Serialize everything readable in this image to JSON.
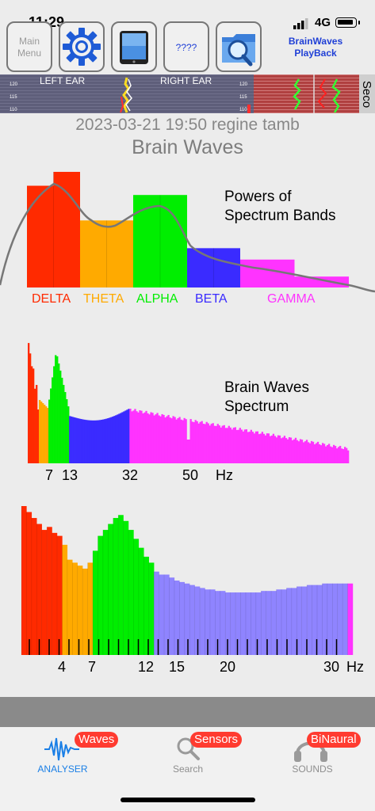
{
  "status_bar": {
    "time": "11:29",
    "network": "4G"
  },
  "toolbar": {
    "main_menu_label": "Main\nMenu",
    "unknown_label": "????",
    "app_title_line1": "BrainWaves",
    "app_title_line2": "PlayBack"
  },
  "ear_strip": {
    "left_label": "LEFT EAR",
    "right_label": "RIGHT EAR",
    "side_label": "Seco",
    "scale": [
      "120",
      "115",
      "110"
    ]
  },
  "header": {
    "subtitle": "2023-03-21 19:50 regine tamb",
    "title": "Brain Waves"
  },
  "chart_data": [
    {
      "type": "bar",
      "title": "Powers of\nSpectrum Bands",
      "categories": [
        "DELTA",
        "THETA",
        "ALPHA",
        "BETA",
        "GAMMA"
      ],
      "colors": [
        "#ff2a00",
        "#ffaa00",
        "#00ee00",
        "#3a2bff",
        "#ff33ff"
      ],
      "values": [
        100,
        58,
        80,
        34,
        21
      ],
      "ylim": [
        0,
        100
      ]
    },
    {
      "type": "bar",
      "title": "Brain Waves\nSpectrum",
      "xlabel": "Hz",
      "tick_labels": [
        "7",
        "13",
        "32",
        "50"
      ],
      "bands": [
        {
          "name": "delta",
          "color": "#ff2a00",
          "from": 1,
          "to": 4
        },
        {
          "name": "theta",
          "color": "#ffaa00",
          "from": 4,
          "to": 7
        },
        {
          "name": "alpha",
          "color": "#00ee00",
          "from": 7,
          "to": 13
        },
        {
          "name": "beta",
          "color": "#3a2bff",
          "from": 13,
          "to": 32
        },
        {
          "name": "gamma",
          "color": "#ff33ff",
          "from": 32,
          "to": 100
        }
      ]
    },
    {
      "type": "bar",
      "xlabel": "Hz",
      "tick_labels": [
        "4",
        "7",
        "12",
        "15",
        "20",
        "30"
      ],
      "values": [
        100,
        96,
        92,
        88,
        84,
        86,
        82,
        80,
        74,
        64,
        62,
        60,
        58,
        62,
        70,
        80,
        84,
        88,
        92,
        94,
        90,
        84,
        78,
        72,
        66,
        62,
        56,
        54,
        54,
        52,
        50,
        49,
        48,
        47,
        46,
        45,
        44,
        44,
        43,
        43,
        42,
        42,
        42,
        42,
        42,
        42,
        42,
        43,
        43,
        43,
        44,
        44,
        45,
        45,
        46,
        46,
        47,
        47,
        47,
        48,
        48,
        48,
        48,
        48,
        48
      ],
      "ylim": [
        0,
        100
      ]
    }
  ],
  "tabbar": {
    "tabs": [
      {
        "label": "ANALYSER",
        "badge": "Waves"
      },
      {
        "label": "Search",
        "badge": "Sensors"
      },
      {
        "label": "SOUNDS",
        "badge": "BiNaural"
      }
    ]
  }
}
